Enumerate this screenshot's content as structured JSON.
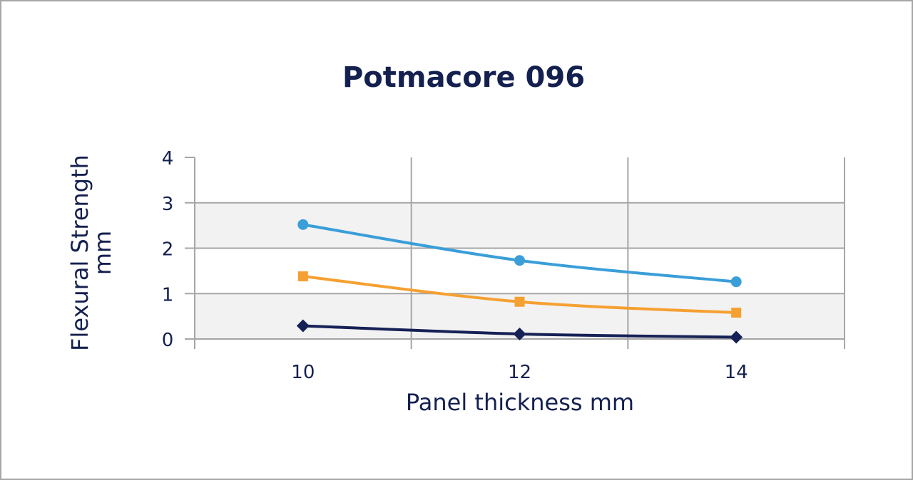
{
  "chart_data": {
    "type": "line",
    "title": "Potmacore 096",
    "xlabel": "Panel thickness mm",
    "ylabel": [
      "Flexural Strength",
      "mm"
    ],
    "x": [
      10,
      12,
      14
    ],
    "xlim": [
      9,
      15
    ],
    "xticks": [
      10,
      12,
      14
    ],
    "ylim": [
      0,
      4
    ],
    "yticks": [
      0,
      1,
      2,
      3,
      4
    ],
    "grid": true,
    "legend": "none",
    "series": [
      {
        "marker": "circle",
        "color": "#3a9ed9",
        "values": [
          2.52,
          1.73,
          1.26
        ]
      },
      {
        "marker": "square",
        "color": "#f5a031",
        "values": [
          1.38,
          0.82,
          0.58
        ]
      },
      {
        "marker": "diamond",
        "color": "#162155",
        "values": [
          0.29,
          0.11,
          0.04
        ]
      }
    ]
  }
}
